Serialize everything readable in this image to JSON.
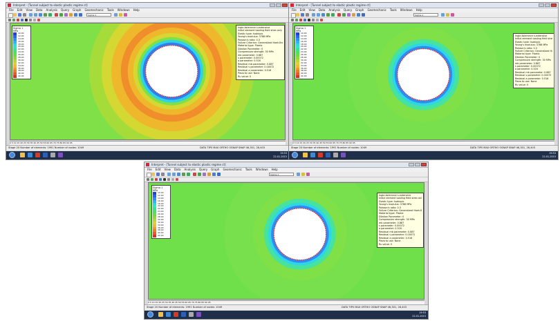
{
  "window": {
    "title": "Interpret - [Tunnel subject to elastic plastic regime ct]",
    "menu": [
      "File",
      "Edit",
      "View",
      "Data",
      "Analysis",
      "Query",
      "Graph",
      "Geomechanic",
      "Tools",
      "Windows",
      "Help"
    ],
    "plot_selector": "Sigma 1"
  },
  "legend": {
    "title": "Sigma 1",
    "unit": "MPa",
    "values": [
      "10.00",
      "12.00",
      "14.00",
      "16.00",
      "18.00",
      "20.00",
      "22.00",
      "24.00",
      "26.00",
      "28.00",
      "30.00",
      "32.00",
      "34.00",
      "36.00",
      "38.00",
      "40.00",
      "42.00"
    ],
    "colors": [
      "#1e3ee0",
      "#2a63f0",
      "#2f8cf5",
      "#2fb3f2",
      "#2ad8e6",
      "#30e6bf",
      "#34e68d",
      "#46e35c",
      "#68df3e",
      "#8fd83a",
      "#b8d735",
      "#d9d231",
      "#edbb2c",
      "#f09a2a",
      "#ef7a28",
      "#e85a25",
      "#d93222"
    ]
  },
  "info": {
    "lines": [
      "Ingbr-tolerance  s-extensive",
      "Initial element loading field stres only",
      "Elastic type: Isotropic",
      "Young's modulus: 3788 MPa",
      "Poisson's ratio: 0.3",
      "Failure Criterion: Generalized Hoek-Brown",
      "Material type: Plastic",
      "Dilation Parameter: 0",
      "Compressive strength: 30 MPa",
      "mb parameter: 0.887",
      "s parameter: 0.00072",
      "a parameter: 0.516",
      "Residual mb parameter: 0.887",
      "Residual s parameter: 0.00072",
      "Residual a parameter: 0.516",
      "Piezo to use: None",
      "Ru value: 0"
    ]
  },
  "ruler_text": "0    5    10    15    20    25    30    35    40    45    50    55    60    65    70    75    80    85    90    95",
  "status": {
    "left": "Stage 20  Number of elements: 1991  Number of nodes: 1049",
    "mid": "DATA TIPS MAX    ORTHO  OSNAP  SNAP  46,301, 28,403"
  },
  "clock": {
    "time": "19:53",
    "date": "22-01-2015"
  },
  "panels": [
    {
      "id": "top-left"
    },
    {
      "id": "top-right"
    },
    {
      "id": "bottom"
    }
  ]
}
